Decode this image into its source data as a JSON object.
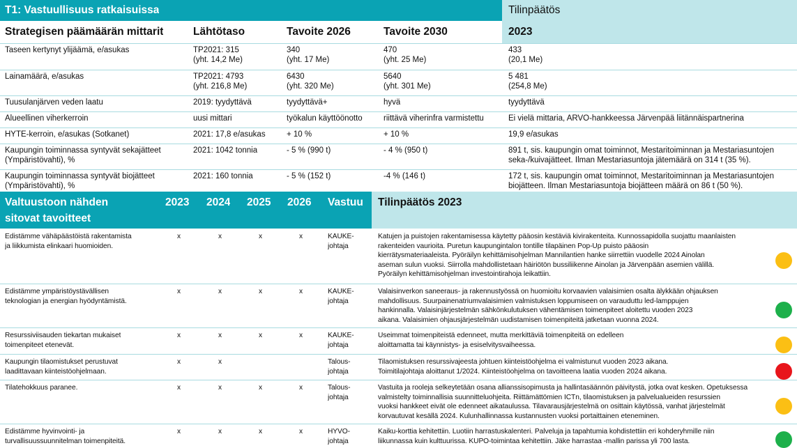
{
  "header": {
    "title": "T1: Vastuullisuus ratkaisuissa",
    "result_title": "Tilinpäätös",
    "result_year": "2023"
  },
  "table1": {
    "columns": [
      "Strategisen päämäärän mittarit",
      "Lähtötaso",
      "Tavoite 2026",
      "Tavoite 2030"
    ],
    "rows": [
      [
        [
          "Taseen kertynyt ylijäämä, e/asukas"
        ],
        [
          "TP2021: 315",
          "(yht. 14,2 Me)"
        ],
        [
          "340",
          "(yht. 17 Me)"
        ],
        [
          "470",
          "(yht. 25 Me)"
        ],
        [
          "433",
          "(20,1 Me)"
        ]
      ],
      [
        [
          "Lainamäärä, e/asukas"
        ],
        [
          "TP2021: 4793",
          "(yht. 216,8 Me)"
        ],
        [
          "6430",
          "(yht. 320 Me)"
        ],
        [
          "5640",
          "(yht. 301 Me)"
        ],
        [
          "5 481",
          "(254,8 Me)"
        ]
      ],
      [
        [
          "Tuusulanjärven veden laatu"
        ],
        [
          "2019: tyydyttävä"
        ],
        [
          "tyydyttävä+"
        ],
        [
          "hyvä"
        ],
        [
          "tyydyttävä"
        ]
      ],
      [
        [
          "Alueellinen viherkerroin"
        ],
        [
          "uusi mittari"
        ],
        [
          "työkalun käyttöönotto"
        ],
        [
          "riittävä viherinfra varmistettu"
        ],
        [
          "Ei vielä mittaria, ARVO-hankkeessa Järvenpää liitännäispartnerina"
        ]
      ],
      [
        [
          "HYTE-kerroin, e/asukas (Sotkanet)"
        ],
        [
          "2021: 17,8 e/asukas"
        ],
        [
          "+ 10 %"
        ],
        [
          "+ 10 %"
        ],
        [
          "19,9 e/asukas"
        ]
      ],
      [
        [
          "Kaupungin toiminnassa syntyvät sekajätteet",
          "(Ympäristövahti), %"
        ],
        [
          "2021: 1042 tonnia"
        ],
        [
          "- 5 % (990 t)"
        ],
        [
          "- 4 % (950 t)"
        ],
        [
          "891 t, sis. kaupungin omat toiminnot, Mestaritoiminnan ja Mestariasuntojen",
          "seka-/kuivajätteet. Ilman Mestariasuntoja jätemäärä on 314 t (35 %)."
        ]
      ],
      [
        [
          "Kaupungin toiminnassa syntyvät biojätteet",
          "(Ympäristövahti), %"
        ],
        [
          "2021: 160 tonnia"
        ],
        [
          "- 5 % (152 t)"
        ],
        [
          "-4 % (146 t)"
        ],
        [
          "172 t, sis. kaupungin omat toiminnot, Mestaritoiminnan ja Mestariasuntojen",
          "biojätteen. Ilman Mestariasuntoja biojätteen määrä on 86 t (50 %)."
        ]
      ]
    ]
  },
  "table2": {
    "columns": [
      [
        "Valtuustoon nähden",
        "sitovat tavoitteet"
      ],
      [
        "2023"
      ],
      [
        "2024"
      ],
      [
        "2025"
      ],
      [
        "2026"
      ],
      [
        "Vastuu"
      ],
      [
        "Tilinpäätös 2023"
      ]
    ],
    "rows": [
      {
        "goal": [
          "Edistämme vähäpäästöistä rakentamista",
          "ja liikkumista elinkaari huomioiden."
        ],
        "years": [
          "x",
          "x",
          "x",
          "x"
        ],
        "owner": [
          "KAUKE-",
          "johtaja"
        ],
        "result": [
          "Katujen ja puistojen rakentamisessa käytetty pääosin kestäviä kivirakenteita. Kunnossapidolla suojattu maanlaisten",
          "rakenteiden vaurioita. Puretun kaupungintalon tontille tilapäinen Pop-Up puisto pääosin",
          "kierrätysmateriaaleista. Pyöräilyn kehittämisohjelman Mannilantien hanke siirrettiin vuodelle 2024 Ainolan",
          "aseman sulun vuoksi. Siirrolla mahdollistetaan häiriötön bussiliikenne Ainolan ja Järvenpään asemien välillä.",
          "Pyöräilyn kehittämisohjelman investointirahoja leikattiin."
        ],
        "status": "#fbbf14"
      },
      {
        "goal": [
          "Edistämme ympäristöystävällisen",
          "teknologian ja energian hyödyntämistä."
        ],
        "years": [
          "x",
          "x",
          "x",
          "x"
        ],
        "owner": [
          "KAUKE-",
          "johtaja"
        ],
        "result": [
          "Valaisinverkon saneeraus- ja rakennustyössä on huomioitu korvaavien valaisimien osalta älykkään ohjauksen",
          "mahdollisuus. Suurpainenatriumvalaisimien valmistuksen loppumiseen on varauduttu led-lamppujen",
          "hankinnalla. Valaisinjärjestelmän sähkönkulutuksen vähentämisen toimenpiteet aloitettu vuoden 2023",
          "aikana. Valaisimien ohjausjärjestelmän uudistamisen toimenpiteitä jatketaan vuonna 2024."
        ],
        "status": "#1db04b"
      },
      {
        "goal": [
          "Resurssiviisauden tiekartan mukaiset",
          "toimenpiteet etenevät."
        ],
        "years": [
          "x",
          "x",
          "x",
          "x"
        ],
        "owner": [
          "KAUKE-",
          "johtaja"
        ],
        "result": [
          "Useimmat toimenpiteistä edenneet, mutta merkittäviä toimenpiteitä on edelleen",
          "aloittamatta tai käynnistys- ja esiselvitysvaiheessa."
        ],
        "status": "#fbbf14"
      },
      {
        "goal": [
          "Kaupungin tilaomistukset perustuvat",
          "laadittavaan kiinteistöohjelmaan."
        ],
        "years": [
          "x",
          "x",
          null,
          null
        ],
        "owner": [
          "Talous-",
          "johtaja"
        ],
        "result": [
          "Tilaomistuksen resurssivajeesta johtuen kiinteistöohjelma ei valmistunut vuoden 2023 aikana.",
          "Toimitilajohtaja aloittanut 1/2024. Kiinteistöohjelma on tavoitteena laatia vuoden 2024 aikana."
        ],
        "status": "#e8151b"
      },
      {
        "goal": [
          "Tilatehokkuus paranee."
        ],
        "years": [
          "x",
          "x",
          "x",
          "x"
        ],
        "owner": [
          "Talous-",
          "johtaja"
        ],
        "result": [
          "Vastuita ja rooleja selkeytetään osana allianssisopimusta ja hallintasäännön päivitystä, jotka ovat kesken. Opetuksessa",
          "valmistelty toiminnallisia suunnitteluohjeita. Riittämättömien ICTn, tilaomistuksen ja palvelualueiden resurssien",
          "vuoksi hankkeet eivät ole edenneet aikataulussa. Tilavarausjärjestelmä on osittain käytössä, vanhat järjestelmät",
          "korvautuvat kesällä 2024. Kulunhallinnassa kustannusten vuoksi portaittainen eteneminen."
        ],
        "status": "#fbbf14"
      },
      {
        "goal": [
          "Edistämme hyvinvointi- ja",
          "turvallisuussuunnitelman toimenpiteitä."
        ],
        "years": [
          "x",
          "x",
          "x",
          "x"
        ],
        "owner": [
          "HYVO-",
          "johtaja"
        ],
        "result": [
          "Kaiku-korttia kehitettiin. Luotiin harrastuskalenteri. Palveluja ja tapahtumia kohdistettiin eri kohderyhmille niin",
          "liikunnassa kuin kulttuurissa. KUPO-toimintaa kehitettiin. Jäke harrastaa -mallin parissa yli 700 lasta."
        ],
        "status": "#1db04b"
      }
    ]
  }
}
